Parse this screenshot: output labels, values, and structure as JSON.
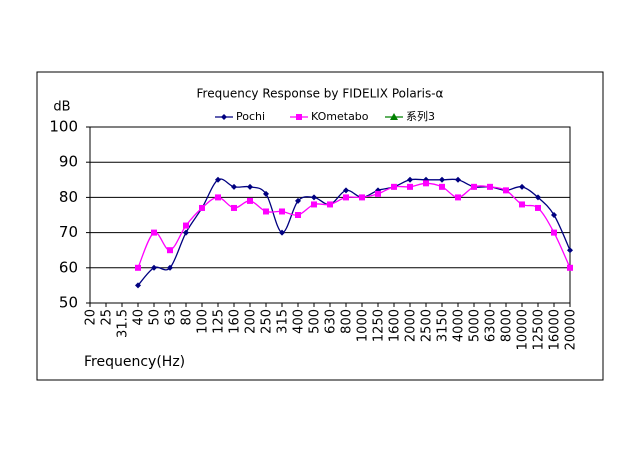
{
  "chart_data": {
    "type": "line",
    "title": "Frequency Response by FIDELIX Polaris-α",
    "y_label": "dB",
    "x_label": "Frequency(Hz)",
    "categories": [
      "20",
      "25",
      "31.5",
      "40",
      "50",
      "63",
      "80",
      "100",
      "125",
      "160",
      "200",
      "250",
      "315",
      "400",
      "500",
      "630",
      "800",
      "1000",
      "1250",
      "1600",
      "2000",
      "2500",
      "3150",
      "4000",
      "5000",
      "6300",
      "8000",
      "10000",
      "12500",
      "16000",
      "20000"
    ],
    "series": [
      {
        "name": "Pochi",
        "color": "#000080",
        "marker": "diamond",
        "values": [
          null,
          null,
          null,
          55,
          60,
          60,
          70,
          77,
          85,
          83,
          83,
          81,
          70,
          79,
          80,
          78,
          82,
          80,
          82,
          83,
          85,
          85,
          85,
          85,
          83,
          83,
          82,
          83,
          80,
          75,
          65
        ]
      },
      {
        "name": "KOmetabo",
        "color": "#ff00ff",
        "marker": "square",
        "values": [
          null,
          null,
          null,
          60,
          70,
          65,
          72,
          77,
          80,
          77,
          79,
          76,
          76,
          75,
          78,
          78,
          80,
          80,
          81,
          83,
          83,
          84,
          83,
          80,
          83,
          83,
          82,
          78,
          77,
          70,
          60
        ]
      },
      {
        "name": "系列3",
        "color": "#008000",
        "marker": "triangle",
        "values": [
          null,
          null,
          null,
          null,
          null,
          null,
          null,
          null,
          null,
          null,
          null,
          null,
          null,
          null,
          null,
          null,
          null,
          null,
          null,
          null,
          null,
          null,
          null,
          null,
          null,
          null,
          null,
          null,
          null,
          null,
          null
        ]
      }
    ],
    "ylim": [
      50,
      100
    ],
    "yticks": [
      50,
      60,
      70,
      80,
      90,
      100
    ],
    "grid": true,
    "smooth": true,
    "legend": "top"
  }
}
